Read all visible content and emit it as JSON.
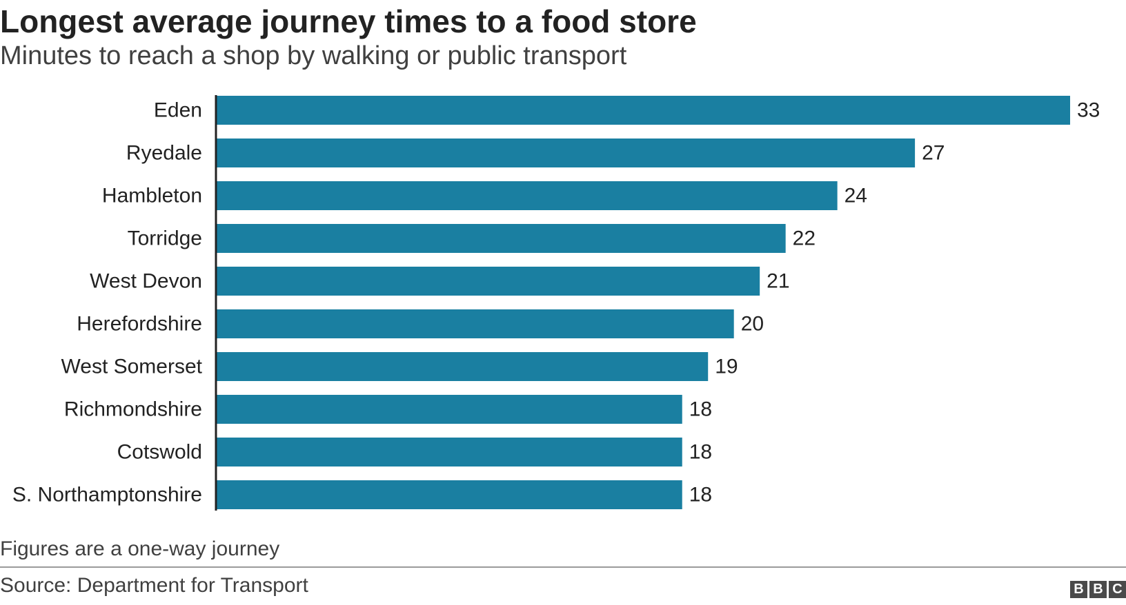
{
  "header": {
    "title": "Longest average journey times to a food store",
    "subtitle": "Minutes to reach a shop by walking or public transport"
  },
  "footer": {
    "note": "Figures are a one-way journey",
    "source": "Source: Department for Transport",
    "logo_letters": [
      "B",
      "B",
      "C"
    ]
  },
  "colors": {
    "bar": "#1a7fa1",
    "axis": "#222222",
    "text": "#222222"
  },
  "chart_data": {
    "type": "bar",
    "orientation": "horizontal",
    "title": "Longest average journey times to a food store",
    "subtitle": "Minutes to reach a shop by walking or public transport",
    "categories": [
      "Eden",
      "Ryedale",
      "Hambleton",
      "Torridge",
      "West Devon",
      "Herefordshire",
      "West Somerset",
      "Richmondshire",
      "Cotswold",
      "S. Northamptonshire"
    ],
    "values": [
      33,
      27,
      24,
      22,
      21,
      20,
      19,
      18,
      18,
      18
    ],
    "xlim": [
      0,
      33
    ],
    "grid": false,
    "data_labels": true
  }
}
